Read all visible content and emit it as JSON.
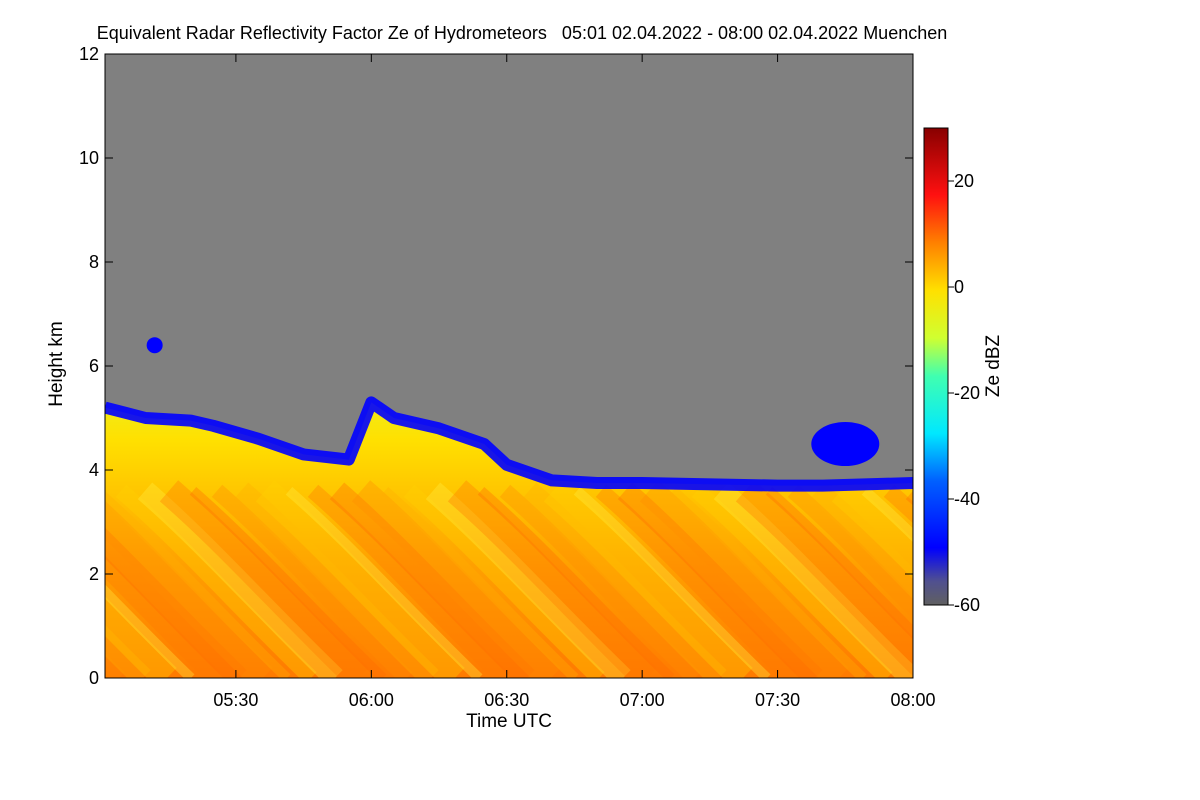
{
  "chart_data": {
    "type": "heatmap",
    "title": "Equivalent Radar Reflectivity Factor Ze of Hydrometeors   05:01 02.04.2022 - 08:00 02.04.2022 Muenchen",
    "xlabel": "Time UTC",
    "ylabel": "Height km",
    "x_range": [
      "05:01",
      "08:00"
    ],
    "ylim": [
      0,
      12
    ],
    "x_ticks": [
      "05:30",
      "06:00",
      "06:30",
      "07:00",
      "07:30",
      "08:00"
    ],
    "y_ticks": [
      0,
      2,
      4,
      6,
      8,
      10,
      12
    ],
    "no_signal_color": "#808080",
    "colorbar": {
      "label": "Ze dBZ",
      "range": [
        -60,
        30
      ],
      "ticks": [
        -60,
        -40,
        -20,
        0,
        20
      ]
    },
    "echo_top_km": [
      [
        "05:01",
        5.2
      ],
      [
        "05:10",
        5.0
      ],
      [
        "05:20",
        4.95
      ],
      [
        "05:25",
        4.85
      ],
      [
        "05:35",
        4.6
      ],
      [
        "05:45",
        4.3
      ],
      [
        "05:55",
        4.2
      ],
      [
        "06:00",
        5.3
      ],
      [
        "06:05",
        5.0
      ],
      [
        "06:15",
        4.8
      ],
      [
        "06:25",
        4.5
      ],
      [
        "06:30",
        4.1
      ],
      [
        "06:40",
        3.8
      ],
      [
        "06:50",
        3.75
      ],
      [
        "07:00",
        3.75
      ],
      [
        "07:30",
        3.7
      ],
      [
        "07:40",
        3.7
      ],
      [
        "08:00",
        3.75
      ]
    ],
    "features": [
      {
        "time": "05:12",
        "height_km": 6.4,
        "ze_dbz": -40
      },
      {
        "time": "07:45",
        "height_km": 4.5,
        "ze_dbz": -42
      }
    ]
  }
}
